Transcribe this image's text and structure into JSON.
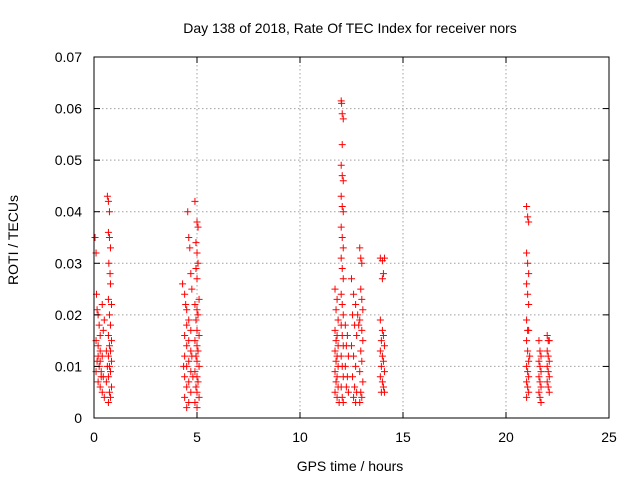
{
  "chart_data": {
    "type": "scatter",
    "title": "Day 138 of 2018, Rate Of TEC Index for receiver nors",
    "xlabel": "GPS time / hours",
    "ylabel": "ROTI / TECUs",
    "xlim": [
      0,
      25
    ],
    "ylim": [
      0,
      0.07
    ],
    "xticks": [
      0,
      5,
      10,
      15,
      20,
      25
    ],
    "xtick_labels": [
      "0",
      "5",
      "10",
      "15",
      "20",
      "25"
    ],
    "yticks": [
      0,
      0.01,
      0.02,
      0.03,
      0.04,
      0.05,
      0.06,
      0.07
    ],
    "ytick_labels": [
      "0",
      "0.01",
      "0.02",
      "0.03",
      "0.04",
      "0.05",
      "0.06",
      "0.07"
    ],
    "grid": true,
    "marker": "+",
    "color": "#ff0000",
    "series": [
      {
        "name": "ROTI",
        "points": [
          [
            0.05,
            0.035
          ],
          [
            0.1,
            0.032
          ],
          [
            0.12,
            0.024
          ],
          [
            0.15,
            0.021
          ],
          [
            0.2,
            0.02
          ],
          [
            0.25,
            0.018
          ],
          [
            0.3,
            0.016
          ],
          [
            0.1,
            0.015
          ],
          [
            0.2,
            0.014
          ],
          [
            0.3,
            0.013
          ],
          [
            0.4,
            0.012
          ],
          [
            0.15,
            0.011
          ],
          [
            0.25,
            0.01
          ],
          [
            0.35,
            0.009
          ],
          [
            0.45,
            0.008
          ],
          [
            0.2,
            0.007
          ],
          [
            0.3,
            0.006
          ],
          [
            0.4,
            0.005
          ],
          [
            0.5,
            0.004
          ],
          [
            0.1,
            0.009
          ],
          [
            0.3,
            0.011
          ],
          [
            0.45,
            0.017
          ],
          [
            0.5,
            0.019
          ],
          [
            0.4,
            0.022
          ],
          [
            0.2,
            0.012
          ],
          [
            0.35,
            0.008
          ],
          [
            0.65,
            0.043
          ],
          [
            0.7,
            0.042
          ],
          [
            0.75,
            0.04
          ],
          [
            0.7,
            0.036
          ],
          [
            0.75,
            0.035
          ],
          [
            0.8,
            0.033
          ],
          [
            0.72,
            0.03
          ],
          [
            0.78,
            0.028
          ],
          [
            0.8,
            0.026
          ],
          [
            0.7,
            0.023
          ],
          [
            0.85,
            0.022
          ],
          [
            0.75,
            0.02
          ],
          [
            0.8,
            0.018
          ],
          [
            0.7,
            0.016
          ],
          [
            0.85,
            0.015
          ],
          [
            0.75,
            0.014
          ],
          [
            0.8,
            0.013
          ],
          [
            0.7,
            0.012
          ],
          [
            0.85,
            0.011
          ],
          [
            0.75,
            0.01
          ],
          [
            0.8,
            0.009
          ],
          [
            0.7,
            0.008
          ],
          [
            0.85,
            0.006
          ],
          [
            0.75,
            0.005
          ],
          [
            0.8,
            0.004
          ],
          [
            0.7,
            0.003
          ],
          [
            0.6,
            0.007
          ],
          [
            0.65,
            0.01
          ],
          [
            0.6,
            0.013
          ],
          [
            4.3,
            0.026
          ],
          [
            4.4,
            0.024
          ],
          [
            4.45,
            0.022
          ],
          [
            4.5,
            0.021
          ],
          [
            4.55,
            0.04
          ],
          [
            4.6,
            0.035
          ],
          [
            4.65,
            0.033
          ],
          [
            4.7,
            0.028
          ],
          [
            4.75,
            0.025
          ],
          [
            4.6,
            0.019
          ],
          [
            4.5,
            0.018
          ],
          [
            4.7,
            0.017
          ],
          [
            4.4,
            0.016
          ],
          [
            4.6,
            0.015
          ],
          [
            4.5,
            0.014
          ],
          [
            4.7,
            0.013
          ],
          [
            4.4,
            0.012
          ],
          [
            4.6,
            0.011
          ],
          [
            4.5,
            0.01
          ],
          [
            4.7,
            0.009
          ],
          [
            4.4,
            0.008
          ],
          [
            4.6,
            0.007
          ],
          [
            4.5,
            0.006
          ],
          [
            4.7,
            0.005
          ],
          [
            4.4,
            0.004
          ],
          [
            4.6,
            0.003
          ],
          [
            4.5,
            0.002
          ],
          [
            4.75,
            0.012
          ],
          [
            4.35,
            0.01
          ],
          [
            4.8,
            0.008
          ],
          [
            4.9,
            0.042
          ],
          [
            5.0,
            0.038
          ],
          [
            5.05,
            0.037
          ],
          [
            4.95,
            0.034
          ],
          [
            5.0,
            0.032
          ],
          [
            5.05,
            0.03
          ],
          [
            4.95,
            0.029
          ],
          [
            5.0,
            0.027
          ],
          [
            5.1,
            0.023
          ],
          [
            4.9,
            0.022
          ],
          [
            5.0,
            0.021
          ],
          [
            5.05,
            0.02
          ],
          [
            4.95,
            0.019
          ],
          [
            5.0,
            0.017
          ],
          [
            5.1,
            0.016
          ],
          [
            4.9,
            0.015
          ],
          [
            5.0,
            0.014
          ],
          [
            5.05,
            0.013
          ],
          [
            4.95,
            0.012
          ],
          [
            5.0,
            0.011
          ],
          [
            5.1,
            0.01
          ],
          [
            4.9,
            0.009
          ],
          [
            5.0,
            0.008
          ],
          [
            5.05,
            0.007
          ],
          [
            4.95,
            0.006
          ],
          [
            5.0,
            0.005
          ],
          [
            5.1,
            0.004
          ],
          [
            4.9,
            0.003
          ],
          [
            5.0,
            0.002
          ],
          [
            11.7,
            0.025
          ],
          [
            11.8,
            0.023
          ],
          [
            11.75,
            0.021
          ],
          [
            11.85,
            0.019
          ],
          [
            11.7,
            0.017
          ],
          [
            11.8,
            0.016
          ],
          [
            11.75,
            0.015
          ],
          [
            11.85,
            0.014
          ],
          [
            11.7,
            0.013
          ],
          [
            11.8,
            0.012
          ],
          [
            11.75,
            0.011
          ],
          [
            11.85,
            0.01
          ],
          [
            11.7,
            0.009
          ],
          [
            11.8,
            0.008
          ],
          [
            11.75,
            0.007
          ],
          [
            11.85,
            0.006
          ],
          [
            11.7,
            0.005
          ],
          [
            11.8,
            0.004
          ],
          [
            11.9,
            0.003
          ],
          [
            12.0,
            0.0615
          ],
          [
            12.02,
            0.061
          ],
          [
            12.05,
            0.059
          ],
          [
            12.1,
            0.058
          ],
          [
            12.05,
            0.053
          ],
          [
            12.0,
            0.049
          ],
          [
            12.05,
            0.047
          ],
          [
            12.1,
            0.046
          ],
          [
            12.0,
            0.043
          ],
          [
            12.05,
            0.041
          ],
          [
            12.1,
            0.04
          ],
          [
            12.0,
            0.037
          ],
          [
            12.05,
            0.035
          ],
          [
            12.1,
            0.033
          ],
          [
            12.0,
            0.031
          ],
          [
            12.05,
            0.029
          ],
          [
            12.1,
            0.027
          ],
          [
            12.0,
            0.024
          ],
          [
            12.05,
            0.022
          ],
          [
            12.1,
            0.02
          ],
          [
            12.0,
            0.018
          ],
          [
            12.05,
            0.016
          ],
          [
            12.1,
            0.014
          ],
          [
            12.0,
            0.012
          ],
          [
            12.05,
            0.01
          ],
          [
            12.1,
            0.008
          ],
          [
            12.0,
            0.006
          ],
          [
            12.05,
            0.004
          ],
          [
            12.1,
            0.003
          ],
          [
            12.2,
            0.018
          ],
          [
            12.3,
            0.016
          ],
          [
            12.25,
            0.014
          ],
          [
            12.35,
            0.012
          ],
          [
            12.2,
            0.01
          ],
          [
            12.3,
            0.008
          ],
          [
            12.25,
            0.006
          ],
          [
            12.35,
            0.005
          ],
          [
            12.5,
            0.027
          ],
          [
            12.6,
            0.024
          ],
          [
            12.7,
            0.022
          ],
          [
            12.55,
            0.02
          ],
          [
            12.65,
            0.018
          ],
          [
            12.75,
            0.016
          ],
          [
            12.5,
            0.014
          ],
          [
            12.6,
            0.012
          ],
          [
            12.7,
            0.01
          ],
          [
            12.55,
            0.008
          ],
          [
            12.65,
            0.006
          ],
          [
            12.75,
            0.005
          ],
          [
            12.6,
            0.004
          ],
          [
            12.7,
            0.003
          ],
          [
            12.8,
            0.02
          ],
          [
            12.85,
            0.018
          ],
          [
            12.9,
            0.033
          ],
          [
            12.95,
            0.031
          ],
          [
            13.0,
            0.03
          ],
          [
            12.95,
            0.025
          ],
          [
            13.0,
            0.023
          ],
          [
            13.05,
            0.021
          ],
          [
            12.9,
            0.019
          ],
          [
            13.0,
            0.017
          ],
          [
            13.05,
            0.015
          ],
          [
            12.95,
            0.013
          ],
          [
            13.0,
            0.011
          ],
          [
            12.9,
            0.009
          ],
          [
            13.05,
            0.007
          ],
          [
            12.95,
            0.005
          ],
          [
            13.0,
            0.004
          ],
          [
            12.9,
            0.003
          ],
          [
            13.9,
            0.031
          ],
          [
            14.0,
            0.0305
          ],
          [
            14.1,
            0.031
          ],
          [
            14.05,
            0.028
          ],
          [
            14.0,
            0.027
          ],
          [
            13.9,
            0.019
          ],
          [
            14.0,
            0.017
          ],
          [
            14.05,
            0.016
          ],
          [
            13.95,
            0.015
          ],
          [
            14.1,
            0.014
          ],
          [
            13.9,
            0.013
          ],
          [
            14.0,
            0.012
          ],
          [
            14.05,
            0.011
          ],
          [
            13.95,
            0.01
          ],
          [
            14.1,
            0.009
          ],
          [
            13.9,
            0.008
          ],
          [
            14.0,
            0.007
          ],
          [
            14.05,
            0.006
          ],
          [
            13.95,
            0.005
          ],
          [
            14.1,
            0.005
          ],
          [
            21.0,
            0.041
          ],
          [
            21.05,
            0.039
          ],
          [
            21.1,
            0.038
          ],
          [
            21.0,
            0.032
          ],
          [
            21.05,
            0.03
          ],
          [
            21.1,
            0.028
          ],
          [
            21.0,
            0.026
          ],
          [
            21.05,
            0.024
          ],
          [
            21.1,
            0.022
          ],
          [
            21.0,
            0.019
          ],
          [
            21.05,
            0.017
          ],
          [
            21.1,
            0.017
          ],
          [
            21.0,
            0.015
          ],
          [
            21.05,
            0.013
          ],
          [
            21.1,
            0.011
          ],
          [
            21.0,
            0.01
          ],
          [
            21.05,
            0.009
          ],
          [
            21.1,
            0.008
          ],
          [
            21.0,
            0.007
          ],
          [
            21.05,
            0.006
          ],
          [
            21.1,
            0.005
          ],
          [
            21.0,
            0.004
          ],
          [
            21.15,
            0.012
          ],
          [
            21.6,
            0.015
          ],
          [
            21.65,
            0.013
          ],
          [
            21.7,
            0.012
          ],
          [
            21.6,
            0.011
          ],
          [
            21.65,
            0.01
          ],
          [
            21.7,
            0.009
          ],
          [
            21.6,
            0.008
          ],
          [
            21.65,
            0.007
          ],
          [
            21.7,
            0.006
          ],
          [
            21.6,
            0.005
          ],
          [
            21.65,
            0.004
          ],
          [
            21.7,
            0.003
          ],
          [
            22.0,
            0.016
          ],
          [
            22.05,
            0.015
          ],
          [
            22.1,
            0.015
          ],
          [
            22.0,
            0.013
          ],
          [
            22.05,
            0.012
          ],
          [
            22.1,
            0.011
          ],
          [
            22.0,
            0.01
          ],
          [
            22.05,
            0.009
          ],
          [
            22.1,
            0.008
          ],
          [
            22.0,
            0.007
          ],
          [
            22.05,
            0.006
          ],
          [
            22.1,
            0.005
          ]
        ]
      }
    ]
  }
}
